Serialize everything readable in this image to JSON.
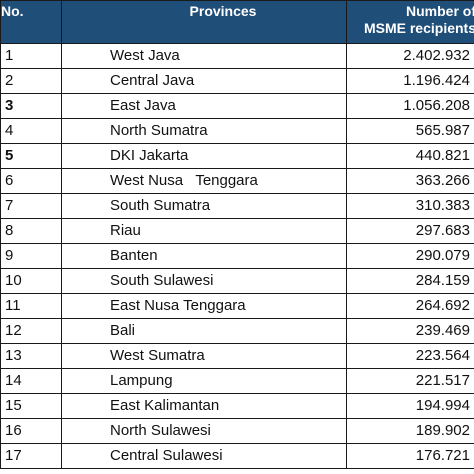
{
  "header": {
    "no": "No.",
    "provinces": "Provinces",
    "value_line1": "Number of",
    "value_line2": "MSME recipients"
  },
  "rows": [
    {
      "no": "1",
      "province": "West Java",
      "value": "2.402.932",
      "no_bold": false
    },
    {
      "no": "2",
      "province": "Central Java",
      "value": "1.196.424",
      "no_bold": false
    },
    {
      "no": "3",
      "province": "East Java",
      "value": "1.056.208",
      "no_bold": true
    },
    {
      "no": "4",
      "province": "North Sumatra",
      "value": "565.987",
      "no_bold": false
    },
    {
      "no": "5",
      "province": "DKI Jakarta",
      "value": "440.821",
      "no_bold": true
    },
    {
      "no": "6",
      "province": "West Nusa   Tenggara",
      "value": "363.266",
      "no_bold": false
    },
    {
      "no": "7",
      "province": "South Sumatra",
      "value": "310.383",
      "no_bold": false
    },
    {
      "no": "8",
      "province": "Riau",
      "value": "297.683",
      "no_bold": false
    },
    {
      "no": "9",
      "province": "Banten",
      "value": "290.079",
      "no_bold": false
    },
    {
      "no": "10",
      "province": "South Sulawesi",
      "value": "284.159",
      "no_bold": false
    },
    {
      "no": "11",
      "province": "East Nusa Tenggara",
      "value": "264.692",
      "no_bold": false
    },
    {
      "no": "12",
      "province": "Bali",
      "value": "239.469",
      "no_bold": false
    },
    {
      "no": "13",
      "province": "West Sumatra",
      "value": "223.564",
      "no_bold": false
    },
    {
      "no": "14",
      "province": "Lampung",
      "value": "221.517",
      "no_bold": false
    },
    {
      "no": "15",
      "province": "East Kalimantan",
      "value": "194.994",
      "no_bold": false
    },
    {
      "no": "16",
      "province": "North Sulawesi",
      "value": "189.902",
      "no_bold": false
    },
    {
      "no": "17",
      "province": "Central Sulawesi",
      "value": "176.721",
      "no_bold": false
    }
  ]
}
